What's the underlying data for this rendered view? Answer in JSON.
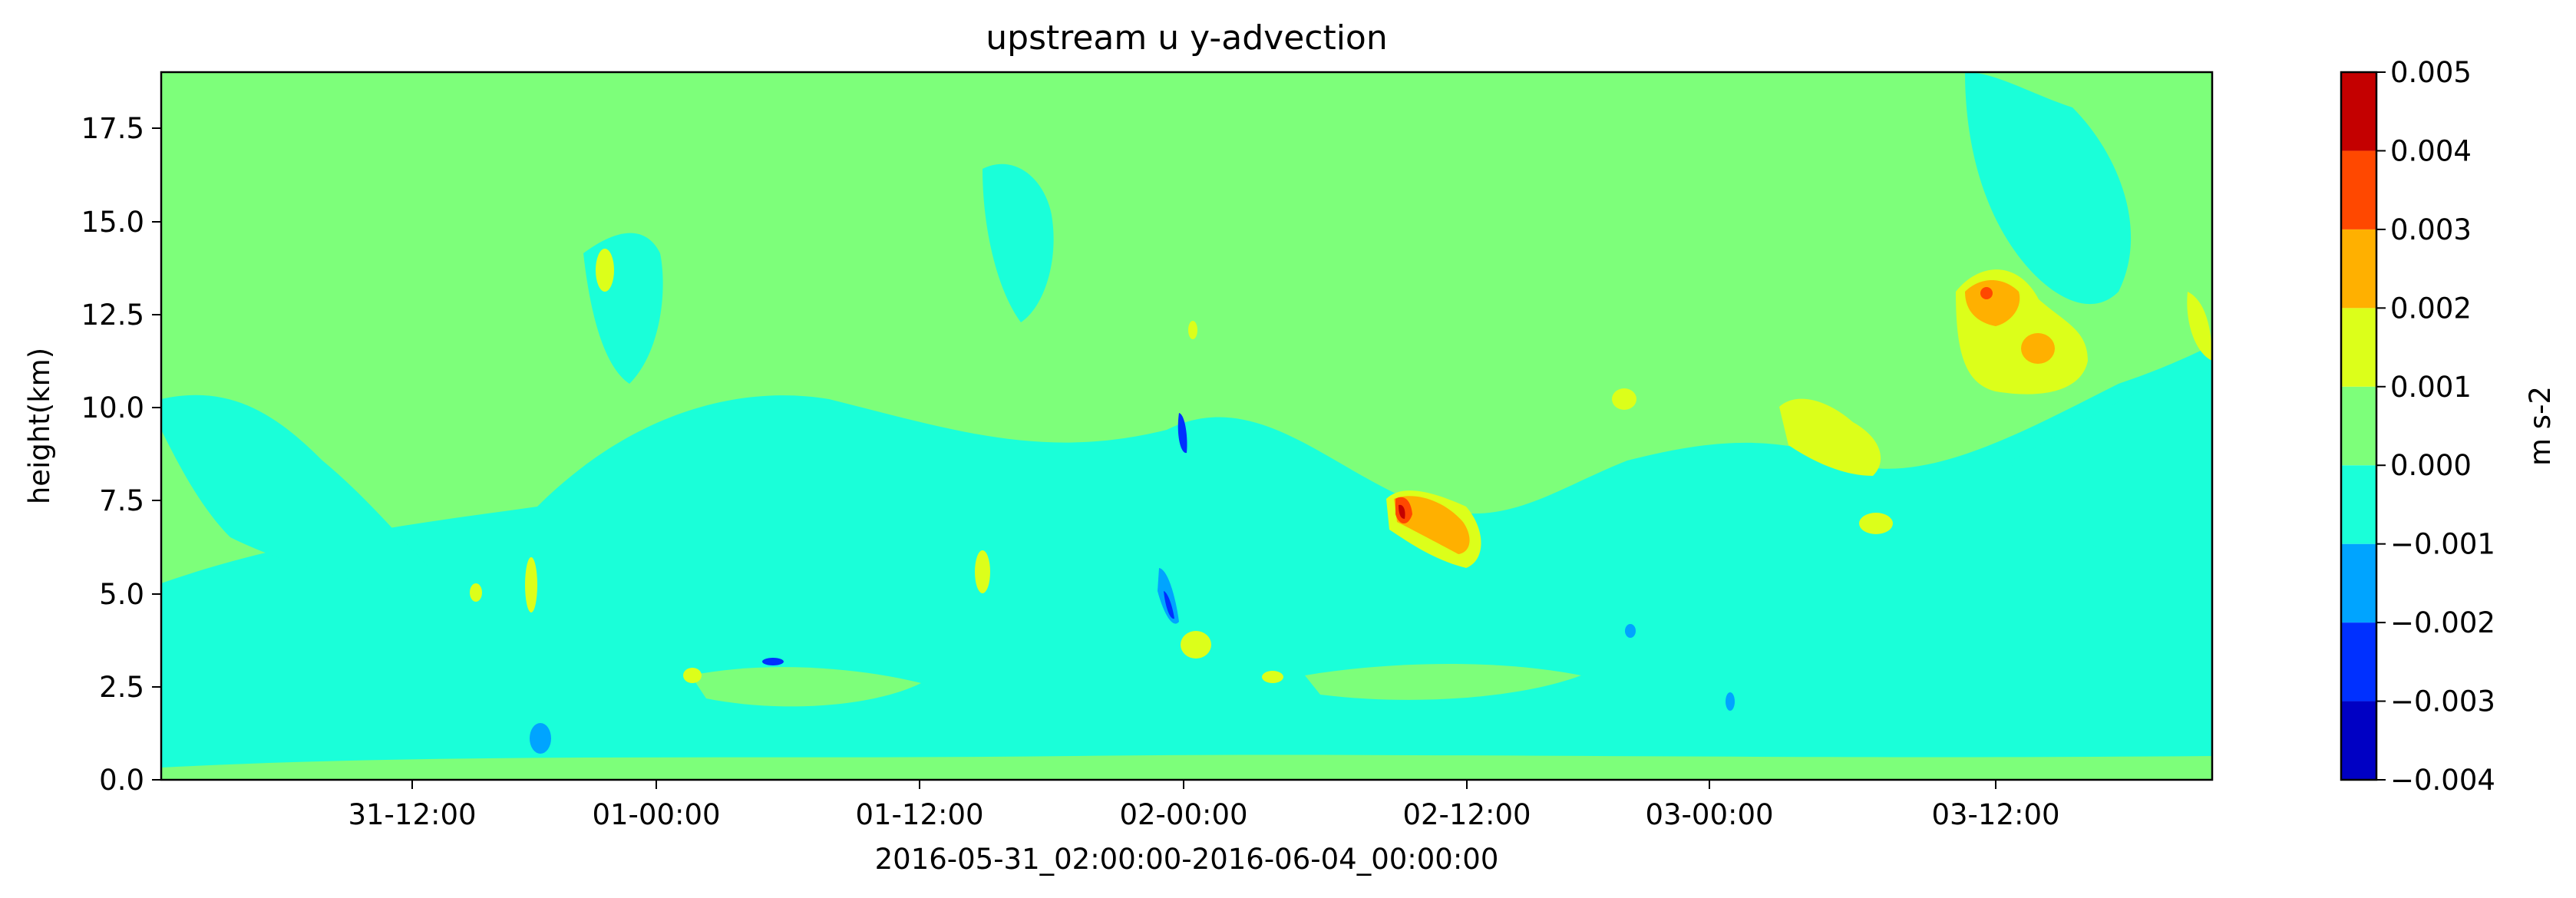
{
  "chart_data": {
    "type": "heatmap",
    "title": "upstream u y-advection",
    "xlabel": "2016-05-31_02:00:00-2016-06-04_00:00:00",
    "ylabel": "height(km)",
    "x_range": [
      "2016-05-31 02:00",
      "2016-06-04 00:00"
    ],
    "ylim": [
      0.0,
      19.0
    ],
    "x_ticks": [
      "31-12:00",
      "01-00:00",
      "01-12:00",
      "02-00:00",
      "02-12:00",
      "03-00:00",
      "03-12:00"
    ],
    "x_tick_times": [
      "2016-05-31 12:00",
      "2016-06-01 00:00",
      "2016-06-01 12:00",
      "2016-06-02 00:00",
      "2016-06-02 12:00",
      "2016-06-03 00:00",
      "2016-06-03 12:00"
    ],
    "y_ticks": [
      "0.0",
      "2.5",
      "5.0",
      "7.5",
      "10.0",
      "12.5",
      "15.0",
      "17.5"
    ],
    "colorbar": {
      "label": "m s-2",
      "levels": [
        -0.004,
        -0.003,
        -0.002,
        -0.001,
        0.0,
        0.001,
        0.002,
        0.003,
        0.004,
        0.005
      ],
      "tick_labels": [
        "−0.004",
        "−0.003",
        "−0.002",
        "−0.001",
        "0.000",
        "0.001",
        "0.002",
        "0.003",
        "0.004",
        "0.005"
      ],
      "colors": [
        "#0000c4",
        "#0030ff",
        "#00a4ff",
        "#1affd9",
        "#7dff7a",
        "#dcff1a",
        "#ffb000",
        "#ff4800",
        "#c40000"
      ]
    },
    "background_value_band": [
      0.0,
      0.001
    ],
    "features": [
      {
        "name": "positive maximum",
        "time": "2016-06-03 12:30",
        "height_km": 13.0,
        "value": 0.003
      },
      {
        "name": "positive maximum",
        "time": "2016-06-02 09:00",
        "height_km": 7.2,
        "value": 0.004
      },
      {
        "name": "positive patch",
        "time": "2016-06-03 05:00",
        "height_km": 9.0,
        "value": 0.001
      },
      {
        "name": "negative minimum",
        "time": "2016-06-01 23:30",
        "height_km": 5.0,
        "value": -0.002
      },
      {
        "name": "negative minimum",
        "time": "2016-06-02 00:00",
        "height_km": 9.5,
        "value": -0.002
      }
    ]
  }
}
